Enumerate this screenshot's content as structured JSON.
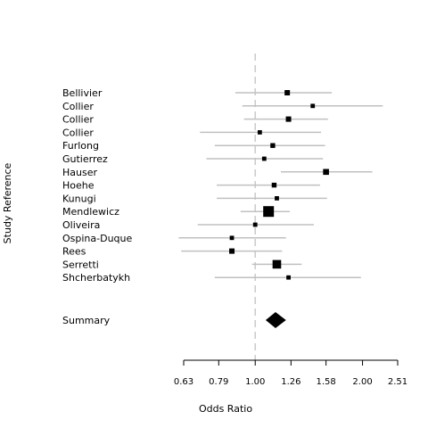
{
  "chart_data": {
    "type": "forest",
    "xlabel": "Odds Ratio",
    "ylabel": "Study Reference",
    "x_scale": "log",
    "xlim": [
      0.63,
      2.51
    ],
    "x_ticks": [
      0.63,
      0.79,
      1.0,
      1.26,
      1.58,
      2.0,
      2.51
    ],
    "x_tick_labels": [
      "0.63",
      "0.79",
      "1.00",
      "1.26",
      "1.58",
      "2.00",
      "2.51"
    ],
    "reference_line": 1.0,
    "colors": {
      "ci_line": "#c0c0c0",
      "marker": "#000000",
      "reference_line": "#cccccc"
    },
    "studies": [
      {
        "label": "Bellivier",
        "or": 1.23,
        "ci": [
          0.88,
          1.64
        ],
        "weight": 1.0
      },
      {
        "label": "Collier",
        "or": 1.45,
        "ci": [
          0.92,
          2.28
        ],
        "weight": 0.8
      },
      {
        "label": "Collier",
        "or": 1.24,
        "ci": [
          0.93,
          1.6
        ],
        "weight": 1.0
      },
      {
        "label": "Collier",
        "or": 1.03,
        "ci": [
          0.7,
          1.53
        ],
        "weight": 0.8
      },
      {
        "label": "Furlong",
        "or": 1.12,
        "ci": [
          0.77,
          1.57
        ],
        "weight": 0.9
      },
      {
        "label": "Gutierrez",
        "or": 1.06,
        "ci": [
          0.73,
          1.55
        ],
        "weight": 0.8
      },
      {
        "label": "Hauser",
        "or": 1.58,
        "ci": [
          1.18,
          2.13
        ],
        "weight": 1.1
      },
      {
        "label": "Hoehe",
        "or": 1.13,
        "ci": [
          0.78,
          1.52
        ],
        "weight": 0.9
      },
      {
        "label": "Kunugi",
        "or": 1.15,
        "ci": [
          0.78,
          1.59
        ],
        "weight": 0.8
      },
      {
        "label": "Mendlewicz",
        "or": 1.09,
        "ci": [
          0.91,
          1.25
        ],
        "weight": 2.0
      },
      {
        "label": "Oliveira",
        "or": 1.0,
        "ci": [
          0.69,
          1.46
        ],
        "weight": 0.8
      },
      {
        "label": "Ospina-Duque",
        "or": 0.86,
        "ci": [
          0.61,
          1.22
        ],
        "weight": 0.8
      },
      {
        "label": "Rees",
        "or": 0.86,
        "ci": [
          0.62,
          1.19
        ],
        "weight": 1.0
      },
      {
        "label": "Serretti",
        "or": 1.15,
        "ci": [
          0.98,
          1.35
        ],
        "weight": 1.6
      },
      {
        "label": "Shcherbatykh",
        "or": 1.24,
        "ci": [
          0.77,
          1.98
        ],
        "weight": 0.8
      }
    ],
    "summary": {
      "label": "Summary",
      "or": 1.14,
      "ci": [
        1.07,
        1.22
      ]
    }
  }
}
